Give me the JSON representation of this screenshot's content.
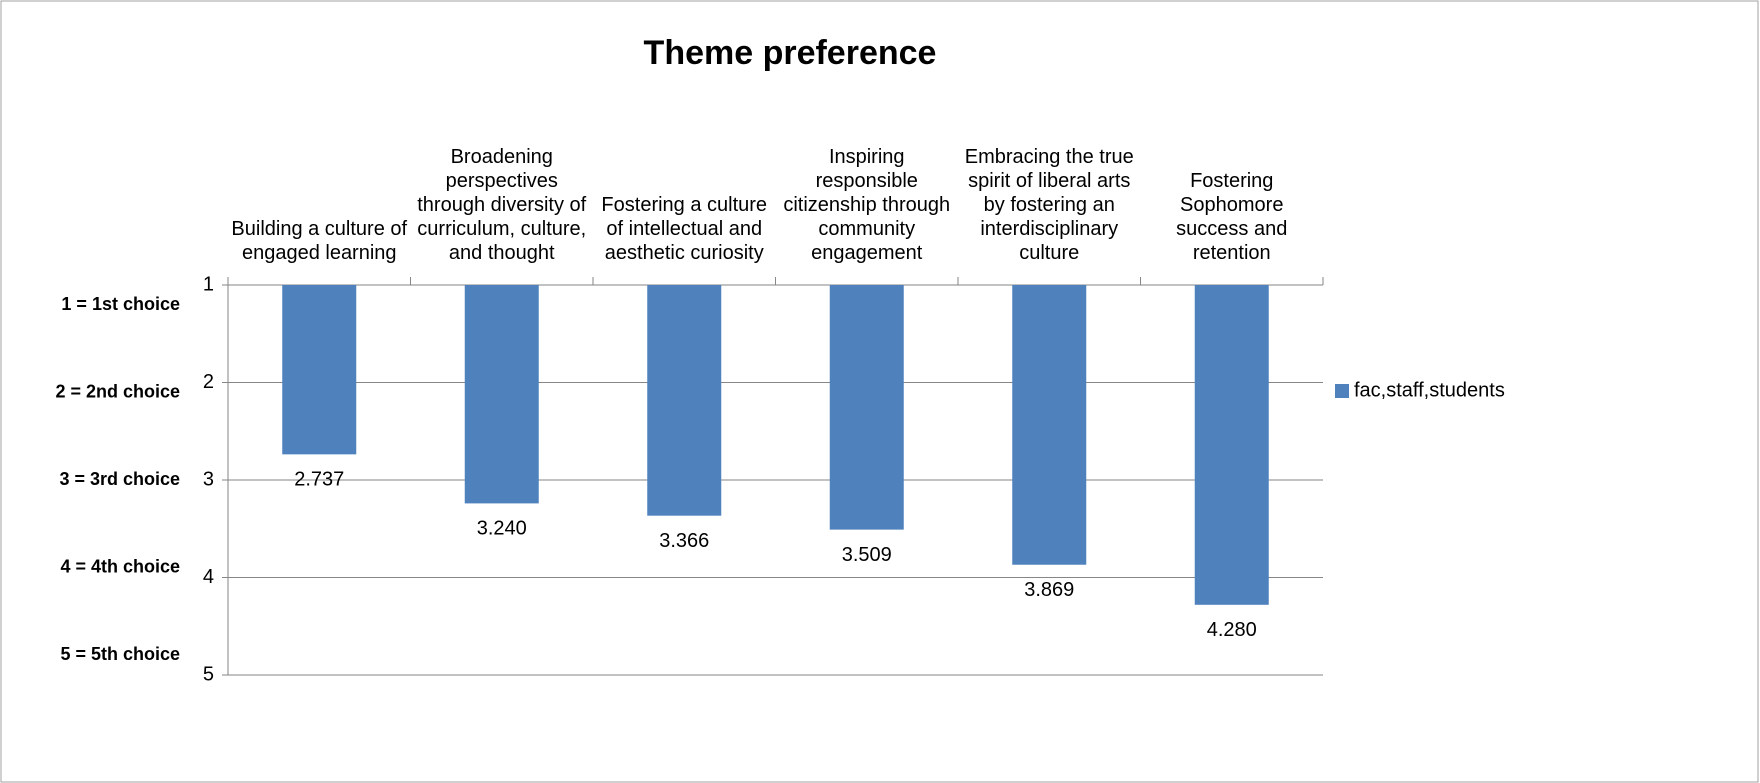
{
  "chart_data": {
    "type": "bar",
    "title": "Theme preference",
    "categories": [
      "Building a culture of engaged learning",
      "Broadening perspectives through diversity of curriculum, culture, and thought",
      "Fostering a culture of intellectual and aesthetic curiosity",
      "Inspiring responsible citizenship through community engagement",
      "Embracing the true spirit of liberal arts by fostering an interdisciplinary culture",
      "Fostering Sophomore success and retention"
    ],
    "series": [
      {
        "name": "fac,staff,students",
        "color": "#4f81bd",
        "values": [
          2.737,
          3.24,
          3.366,
          3.509,
          3.869,
          4.28
        ],
        "value_labels": [
          "2.737",
          "3.240",
          "3.366",
          "3.509",
          "3.869",
          "4.280"
        ]
      }
    ],
    "ylim": [
      1,
      5
    ],
    "yticks": [
      1,
      2,
      3,
      4,
      5
    ],
    "y_inverted": true,
    "grid": true,
    "legend": "right",
    "annotations": [
      "1 = 1st choice",
      "2 = 2nd choice",
      "3 = 3rd choice",
      "4 = 4th choice",
      "5 = 5th choice"
    ]
  }
}
